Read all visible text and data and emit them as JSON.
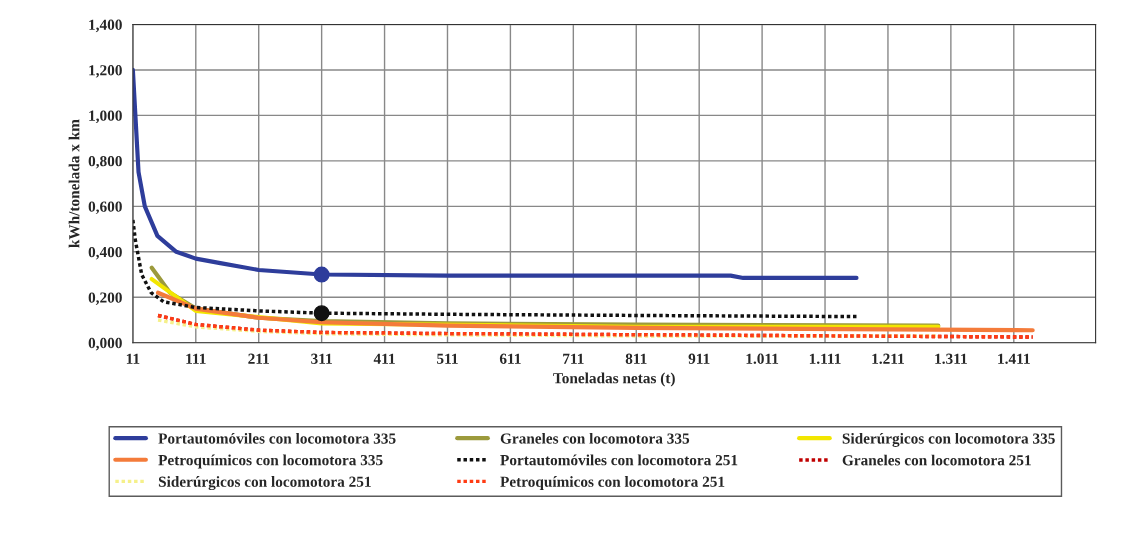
{
  "chart_data": {
    "type": "line",
    "xlabel": "Toneladas netas (t)",
    "ylabel": "kWh/tonelada x km",
    "xlim": [
      11,
      1541
    ],
    "ylim": [
      0,
      1.4
    ],
    "xticks": [
      11,
      111,
      211,
      311,
      411,
      511,
      611,
      711,
      811,
      911,
      {
        "value": 1011,
        "label": "1.011"
      },
      {
        "value": 1111,
        "label": "1.111"
      },
      {
        "value": 1211,
        "label": "1.211"
      },
      {
        "value": 1311,
        "label": "1.311"
      },
      {
        "value": 1411,
        "label": "1.411"
      }
    ],
    "yticks": [
      {
        "value": 0,
        "label": "0,000"
      },
      {
        "value": 0.2,
        "label": "0,200"
      },
      {
        "value": 0.4,
        "label": "0,400"
      },
      {
        "value": 0.6,
        "label": "0,600"
      },
      {
        "value": 0.8,
        "label": "0,800"
      },
      {
        "value": 1.0,
        "label": "1,000"
      },
      {
        "value": 1.2,
        "label": "1,200"
      },
      {
        "value": 1.4,
        "label": "1,400"
      }
    ],
    "grid": true,
    "legend": "bottom",
    "series": [
      {
        "name": "Portautomóviles con locomotora 335",
        "color": "#2e3d9b",
        "line_style": "solid",
        "x": [
          11,
          15,
          20,
          30,
          50,
          80,
          111,
          150,
          211,
          311,
          511,
          811,
          961,
          981,
          1161
        ],
        "values": [
          1.2,
          1.0,
          0.75,
          0.6,
          0.47,
          0.4,
          0.37,
          0.35,
          0.32,
          0.3,
          0.295,
          0.295,
          0.295,
          0.285,
          0.285
        ]
      },
      {
        "name": "Graneles con locomotora 335",
        "color": "#9c9a3c",
        "line_style": "solid",
        "x": [
          41,
          70,
          111,
          211,
          311,
          511,
          811,
          1291
        ],
        "values": [
          0.33,
          0.22,
          0.15,
          0.11,
          0.095,
          0.085,
          0.08,
          0.075
        ]
      },
      {
        "name": "Siderúrgicos con locomotora 335",
        "color": "#f2e600",
        "line_style": "solid",
        "x": [
          41,
          111,
          311,
          811,
          1291
        ],
        "values": [
          0.28,
          0.14,
          0.085,
          0.07,
          0.07
        ]
      },
      {
        "name": "Petroquímicos con locomotora 335",
        "color": "#f47b3a",
        "line_style": "solid",
        "x": [
          51,
          111,
          211,
          311,
          511,
          811,
          1441
        ],
        "values": [
          0.22,
          0.15,
          0.11,
          0.09,
          0.075,
          0.065,
          0.055
        ]
      },
      {
        "name": "Portautomóviles con locomotora 251",
        "color": "#111111",
        "line_style": "dotted",
        "x": [
          11,
          15,
          25,
          40,
          60,
          111,
          211,
          311,
          511,
          811,
          1161
        ],
        "values": [
          0.54,
          0.45,
          0.3,
          0.22,
          0.18,
          0.155,
          0.14,
          0.13,
          0.125,
          0.12,
          0.115
        ]
      },
      {
        "name": "Graneles con locomotora 251",
        "color": "#c00000",
        "line_style": "dotted",
        "x": [
          51,
          111,
          211,
          311,
          511,
          811,
          1441
        ],
        "values": [
          0.12,
          0.08,
          0.055,
          0.045,
          0.04,
          0.035,
          0.025
        ]
      },
      {
        "name": "Siderúrgicos con locomotora 251",
        "color": "#f5f08a",
        "line_style": "dotted",
        "x": [
          51,
          111,
          211,
          311,
          511,
          811,
          1291
        ],
        "values": [
          0.1,
          0.07,
          0.05,
          0.04,
          0.035,
          0.03,
          0.03
        ]
      },
      {
        "name": "Petroquímicos con locomotora 251",
        "color": "#ff3c14",
        "line_style": "dotted",
        "x": [
          51,
          111,
          211,
          311,
          511,
          811,
          1441
        ],
        "values": [
          0.12,
          0.08,
          0.055,
          0.045,
          0.04,
          0.035,
          0.025
        ]
      },
      {
        "type": "scatter",
        "marker": "circle",
        "color": "#2e3d9b",
        "x": [
          311
        ],
        "values": [
          0.3
        ]
      },
      {
        "type": "scatter",
        "marker": "circle",
        "color": "#111111",
        "x": [
          311
        ],
        "values": [
          0.13
        ]
      }
    ]
  }
}
